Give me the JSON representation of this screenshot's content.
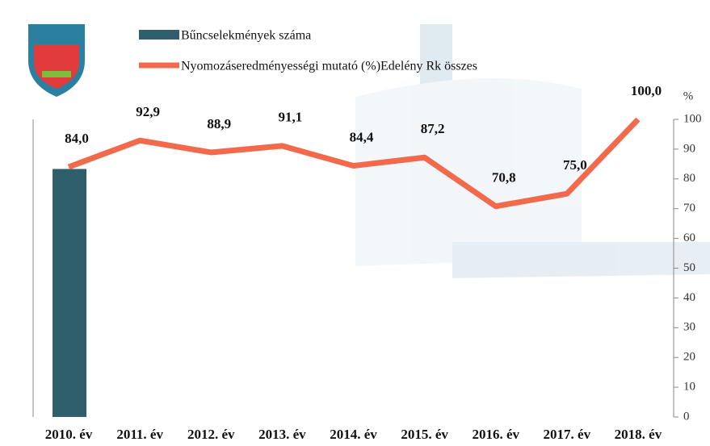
{
  "chart_data": {
    "type": "bar-line",
    "categories": [
      "2010. év",
      "2011. év",
      "2012. év",
      "2013. év",
      "2014. év",
      "2015. év",
      "2016. év",
      "2017. év",
      "2018. év"
    ],
    "ylim": [
      0,
      6
    ],
    "y2lim": [
      0,
      100
    ],
    "y2ticks": [
      0,
      10,
      20,
      30,
      40,
      50,
      60,
      70,
      80,
      90,
      100
    ],
    "y2label": "%",
    "series": [
      {
        "name": "Bűncselekmények száma",
        "type": "bar",
        "color": "#2f5f6c",
        "values": [
          5,
          null,
          null,
          null,
          null,
          null,
          null,
          null,
          null
        ]
      },
      {
        "name": "Nyomozáseredményességi mutató (%)Edelény Rk összes",
        "type": "line",
        "axis": "y2",
        "color": "#f26a4b",
        "values": [
          84.0,
          92.9,
          88.9,
          91.1,
          84.4,
          87.2,
          70.8,
          75.0,
          100.0
        ],
        "value_labels": [
          "84,0",
          "92,9",
          "88,9",
          "91,1",
          "84,4",
          "87,2",
          "70,8",
          "75,0",
          "100,0"
        ]
      }
    ]
  }
}
